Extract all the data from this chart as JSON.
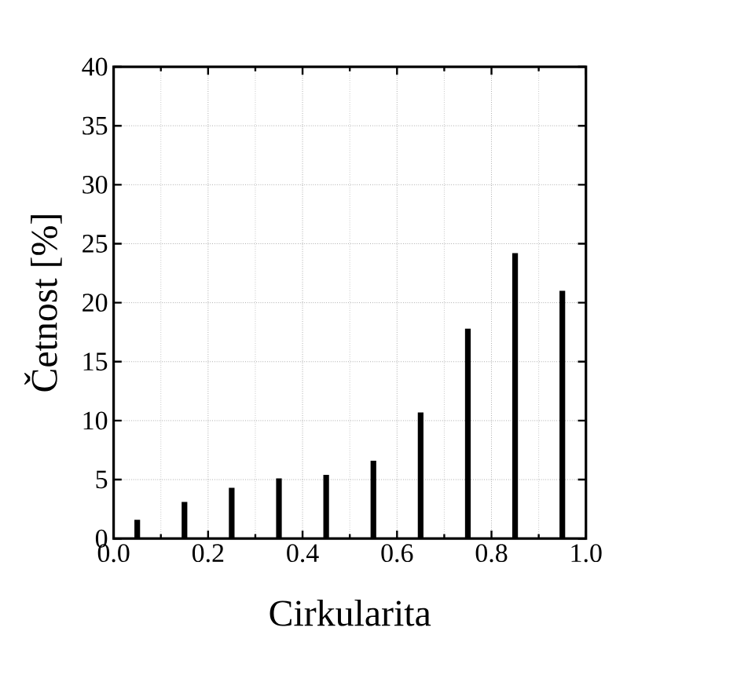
{
  "chart_data": {
    "type": "bar",
    "xlabel": "Cirkularita",
    "ylabel": "Četnost [%]",
    "x": [
      0.05,
      0.15,
      0.25,
      0.35,
      0.45,
      0.55,
      0.65,
      0.75,
      0.85,
      0.95
    ],
    "values": [
      1.6,
      3.1,
      4.3,
      5.1,
      5.4,
      6.6,
      10.7,
      17.8,
      24.2,
      21.0
    ],
    "color": "#000000",
    "xlim": [
      0,
      1
    ],
    "ylim": [
      0,
      40
    ],
    "xticks": [
      {
        "value": 0,
        "label": "0.0"
      },
      0.2,
      0.4,
      0.6,
      0.8,
      {
        "value": 1,
        "label": "1.0"
      }
    ],
    "yticks": [
      0,
      5,
      10,
      15,
      20,
      25,
      30,
      35,
      40
    ],
    "grid": true
  }
}
